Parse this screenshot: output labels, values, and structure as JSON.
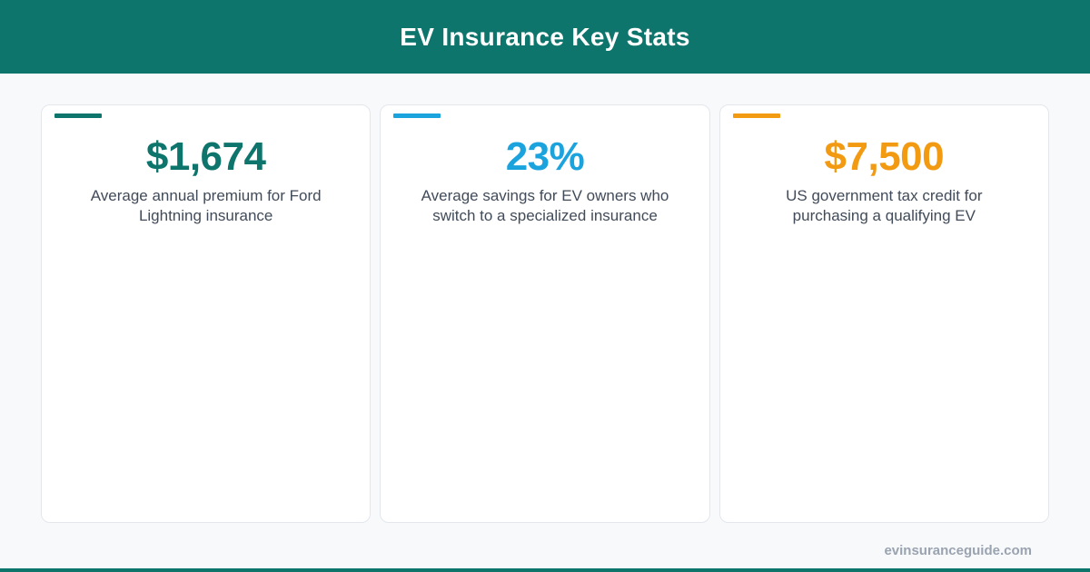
{
  "header": {
    "title": "EV Insurance Key Stats",
    "color": "#0e756d"
  },
  "cards": [
    {
      "value": "$1,674",
      "description": "Average annual premium for Ford Lightning insurance",
      "accent_color": "#0e756d"
    },
    {
      "value": "23%",
      "description": "Average savings for EV owners who switch to a specialized insurance",
      "accent_color": "#1ba3dd"
    },
    {
      "value": "$7,500",
      "description": "US government tax credit for purchasing a qualifying EV",
      "accent_color": "#f29a11"
    }
  ],
  "footer": {
    "site": "evinsuranceguide.com"
  }
}
